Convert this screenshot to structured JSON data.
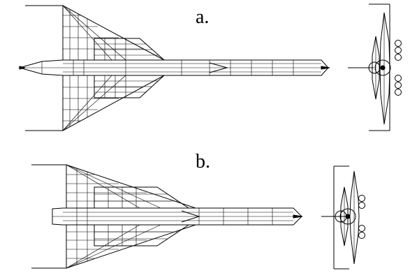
{
  "figure": {
    "panels": [
      {
        "label": "a."
      },
      {
        "label": "b."
      }
    ]
  }
}
